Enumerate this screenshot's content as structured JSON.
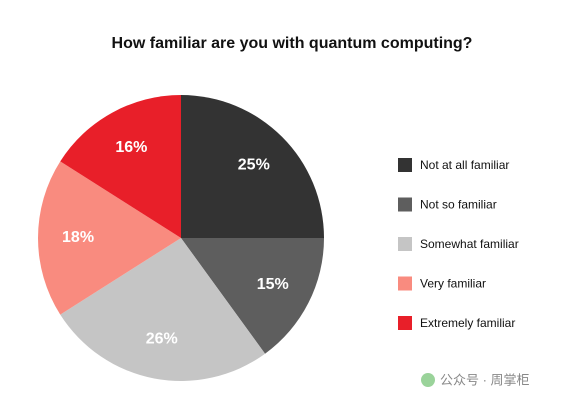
{
  "chart_data": {
    "type": "pie",
    "title": "How familiar are you with quantum computing?",
    "categories": [
      "Not at all familiar",
      "Not so familiar",
      "Somewhat familiar",
      "Very familiar",
      "Extremely familiar"
    ],
    "values": [
      25,
      15,
      26,
      18,
      16
    ],
    "value_labels": [
      "25%",
      "15%",
      "26%",
      "18%",
      "16%"
    ],
    "colors": [
      "#333333",
      "#5e5e5e",
      "#c5c5c5",
      "#f98b7f",
      "#e81f29"
    ],
    "legend": "right",
    "watermark": "公众号 · 周掌柜"
  }
}
